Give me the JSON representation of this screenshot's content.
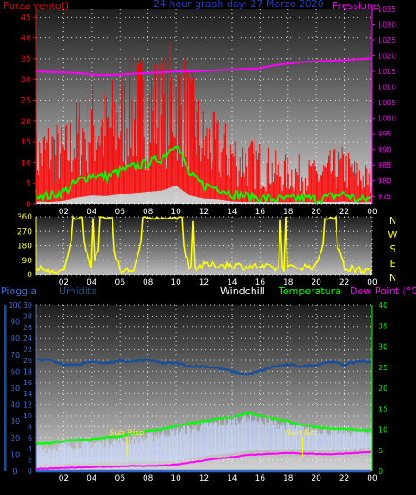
{
  "colors": {
    "wind": "#ff0000",
    "gust": "#ff0000",
    "wind_avg": "#00ff00",
    "pressure": "#ff00ff",
    "direction": "#ffff00",
    "rain": "#3366cc",
    "humidity": "#1a4f9a",
    "windchill": "#c8d8ff",
    "temperature": "#00ff00",
    "dewpoint": "#ff00ff",
    "sun_marker": "#ffff00",
    "grid": "#ffffff"
  },
  "chart_data": [
    {
      "id": "wind-pressure",
      "type": "line",
      "title": "24 hour graph day: 27 Marzo 2020",
      "left_label": "Forza vento()",
      "right_label": "Pressione",
      "x_ticks": [
        "02",
        "04",
        "06",
        "08",
        "10",
        "12",
        "14",
        "16",
        "18",
        "20",
        "22",
        "00"
      ],
      "ylim_left": [
        0,
        47
      ],
      "y_ticks_left": [
        0,
        5,
        10,
        15,
        20,
        25,
        30,
        35,
        40,
        45
      ],
      "ylim_right": [
        972.5,
        1035
      ],
      "y_ticks_right": [
        975,
        980,
        985,
        990,
        995,
        1000,
        1005,
        1010,
        1015,
        1020,
        1025,
        1030,
        1035
      ],
      "x_hours": [
        0,
        1,
        2,
        3,
        4,
        5,
        6,
        7,
        8,
        9,
        10,
        11,
        12,
        13,
        14,
        15,
        16,
        17,
        18,
        19,
        20,
        21,
        22,
        23,
        24
      ],
      "series": [
        {
          "key": "pressure",
          "axis": "right",
          "values": [
            1015,
            1014.8,
            1014.7,
            1014.5,
            1014.0,
            1013.8,
            1014.0,
            1014.3,
            1014.5,
            1014.7,
            1015.0,
            1015.0,
            1015.2,
            1015.4,
            1015.6,
            1015.8,
            1016.0,
            1017.0,
            1017.5,
            1018.0,
            1018.2,
            1018.4,
            1018.6,
            1018.9,
            1019.2
          ]
        },
        {
          "key": "wind_avg",
          "axis": "left",
          "values": [
            2.5,
            2.0,
            3.0,
            5.5,
            7.0,
            6.5,
            8.0,
            9.0,
            10.0,
            11.0,
            15.0,
            7.0,
            4.5,
            4.0,
            2.5,
            2.0,
            1.5,
            1.3,
            1.2,
            1.5,
            1.2,
            1.8,
            2.5,
            1.0,
            1.5
          ]
        },
        {
          "key": "gust",
          "axis": "left",
          "values": [
            15,
            18,
            16,
            22,
            26,
            24,
            28,
            30,
            32,
            30,
            36,
            28,
            20,
            18,
            16,
            14,
            13,
            11,
            10,
            10,
            9,
            11,
            12,
            9,
            8
          ]
        }
      ]
    },
    {
      "id": "wind-direction",
      "type": "line",
      "ylim": [
        0,
        360
      ],
      "y_ticks": [
        0,
        90,
        180,
        270,
        360
      ],
      "cardinals": [
        "N",
        "W",
        "S",
        "E",
        "N"
      ],
      "x_ticks": [
        "02",
        "04",
        "06",
        "08",
        "10",
        "12",
        "14",
        "16",
        "18",
        "20",
        "22",
        "00"
      ],
      "x_hours": [
        0,
        1,
        2,
        3,
        4,
        5,
        6,
        7,
        8,
        9,
        10,
        11,
        12,
        13,
        14,
        15,
        16,
        17,
        18,
        19,
        20,
        21,
        22,
        23,
        24
      ],
      "series": [
        {
          "key": "direction",
          "values": [
            40,
            30,
            20,
            340,
            20,
            340,
            20,
            30,
            340,
            340,
            340,
            30,
            60,
            60,
            60,
            50,
            50,
            40,
            40,
            50,
            50,
            340,
            40,
            30,
            20
          ]
        }
      ]
    },
    {
      "id": "temp-humidity",
      "type": "line",
      "labels": {
        "rain": "Pioggia",
        "humidity": "Umidita",
        "windchill": "Windchill",
        "temperature": "Temperatura",
        "dewpoint": "Dew Point (°C)"
      },
      "ylim_temp": [
        0,
        40
      ],
      "y_ticks_temp": [
        0,
        5,
        10,
        15,
        20,
        25,
        30,
        35,
        40
      ],
      "ylim_rain": [
        0,
        30
      ],
      "y_ticks_rain": [
        0,
        2,
        4,
        6,
        8,
        10,
        12,
        14,
        16,
        18,
        20,
        22,
        24,
        26,
        28,
        30
      ],
      "ylim_hum": [
        0,
        100
      ],
      "y_ticks_hum": [
        0,
        10,
        20,
        30,
        40,
        50,
        60,
        70,
        80,
        90,
        100
      ],
      "x_ticks": [
        "02",
        "04",
        "06",
        "08",
        "10",
        "12",
        "14",
        "16",
        "18",
        "20",
        "22",
        "00"
      ],
      "x_hours": [
        0,
        1,
        2,
        3,
        4,
        5,
        6,
        7,
        8,
        9,
        10,
        11,
        12,
        13,
        14,
        15,
        16,
        17,
        18,
        19,
        20,
        21,
        22,
        23,
        24
      ],
      "series": [
        {
          "key": "humidity",
          "values": [
            67,
            67,
            64,
            64,
            66,
            65,
            66,
            66,
            67,
            65,
            65,
            63,
            63,
            62,
            60,
            58,
            60,
            63,
            64,
            63,
            64,
            66,
            64,
            66,
            66
          ]
        },
        {
          "key": "temperature",
          "values": [
            6.5,
            6.7,
            7.2,
            7.5,
            7.6,
            8.0,
            8.2,
            9.0,
            9.6,
            10.0,
            10.8,
            11.5,
            12.0,
            12.5,
            13.0,
            14.0,
            13.5,
            12.5,
            12.0,
            11.0,
            10.5,
            10.3,
            10.1,
            9.9,
            9.8
          ]
        },
        {
          "key": "windchill",
          "values": [
            5.5,
            5.5,
            6.0,
            6.5,
            6.5,
            7.0,
            7.5,
            7.5,
            8.0,
            9.0,
            9.5,
            10.0,
            11.0,
            11.5,
            12.0,
            13.0,
            12.5,
            11.5,
            11.0,
            10.5,
            10.0,
            9.5,
            9.5,
            9.5,
            9.5
          ]
        },
        {
          "key": "dewpoint",
          "values": [
            0.5,
            0.6,
            0.7,
            0.8,
            0.9,
            1.0,
            1.1,
            1.2,
            1.2,
            1.3,
            1.5,
            2.0,
            2.5,
            3.0,
            3.3,
            3.8,
            4.0,
            4.2,
            4.3,
            4.2,
            4.1,
            4.0,
            4.2,
            4.4,
            4.6
          ]
        },
        {
          "key": "rain",
          "values": [
            0,
            0,
            0,
            0,
            0,
            0,
            0,
            0,
            0,
            0,
            0,
            0,
            0,
            0,
            0,
            0,
            0,
            0,
            0,
            0,
            0,
            0,
            0,
            0,
            0
          ]
        }
      ],
      "events": [
        {
          "label": "Sun Rise",
          "hour": 6.5
        },
        {
          "label": "Sun Set",
          "hour": 19.0
        }
      ]
    }
  ]
}
